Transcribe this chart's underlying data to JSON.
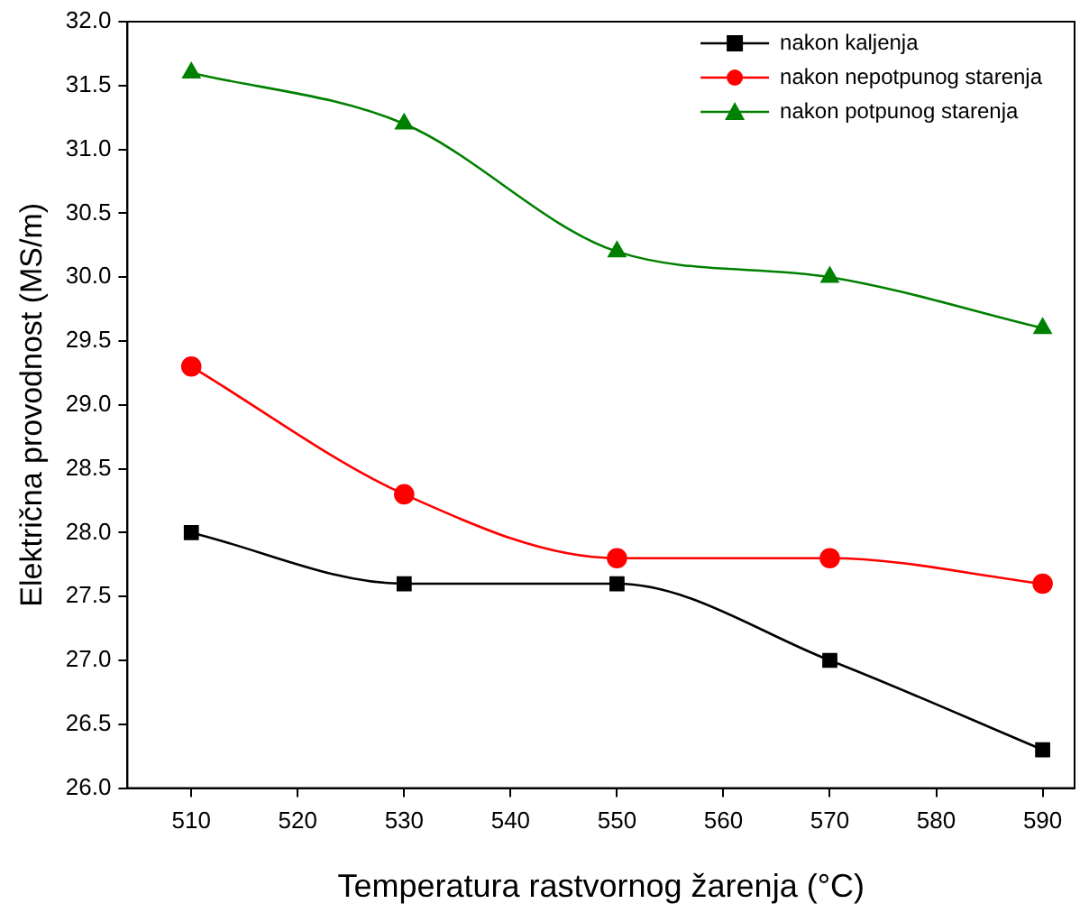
{
  "chart_data": {
    "type": "line",
    "xlabel": "Temperatura rastvornog žarenja (°C)",
    "ylabel": "Električna provodnost (MS/m)",
    "x": [
      510,
      530,
      550,
      570,
      590
    ],
    "series": [
      {
        "name": "nakon kaljenja",
        "color": "#000000",
        "marker": "square",
        "values": [
          28.0,
          27.6,
          27.6,
          27.0,
          26.3
        ]
      },
      {
        "name": "nakon nepotpunog starenja",
        "color": "#ff0000",
        "marker": "circle",
        "values": [
          29.3,
          28.3,
          27.8,
          27.8,
          27.6
        ]
      },
      {
        "name": "nakon potpunog starenja",
        "color": "#008000",
        "marker": "triangle",
        "values": [
          31.6,
          31.2,
          30.2,
          30.0,
          29.6
        ]
      }
    ],
    "xlim": [
      504,
      593
    ],
    "xticks": [
      510,
      520,
      530,
      540,
      550,
      560,
      570,
      580,
      590
    ],
    "ylim": [
      26,
      32
    ],
    "yticks": [
      {
        "value": 26,
        "label": "26.0"
      },
      26.5,
      {
        "value": 27,
        "label": "27.0"
      },
      27.5,
      {
        "value": 28,
        "label": "28.0"
      },
      28.5,
      {
        "value": 29,
        "label": "29.0"
      },
      29.5,
      {
        "value": 30,
        "label": "30.0"
      },
      30.5,
      {
        "value": 31,
        "label": "31.0"
      },
      31.5,
      {
        "value": 32,
        "label": "32.0"
      }
    ],
    "grid": false,
    "legend": "top right",
    "line_style": "solid"
  }
}
